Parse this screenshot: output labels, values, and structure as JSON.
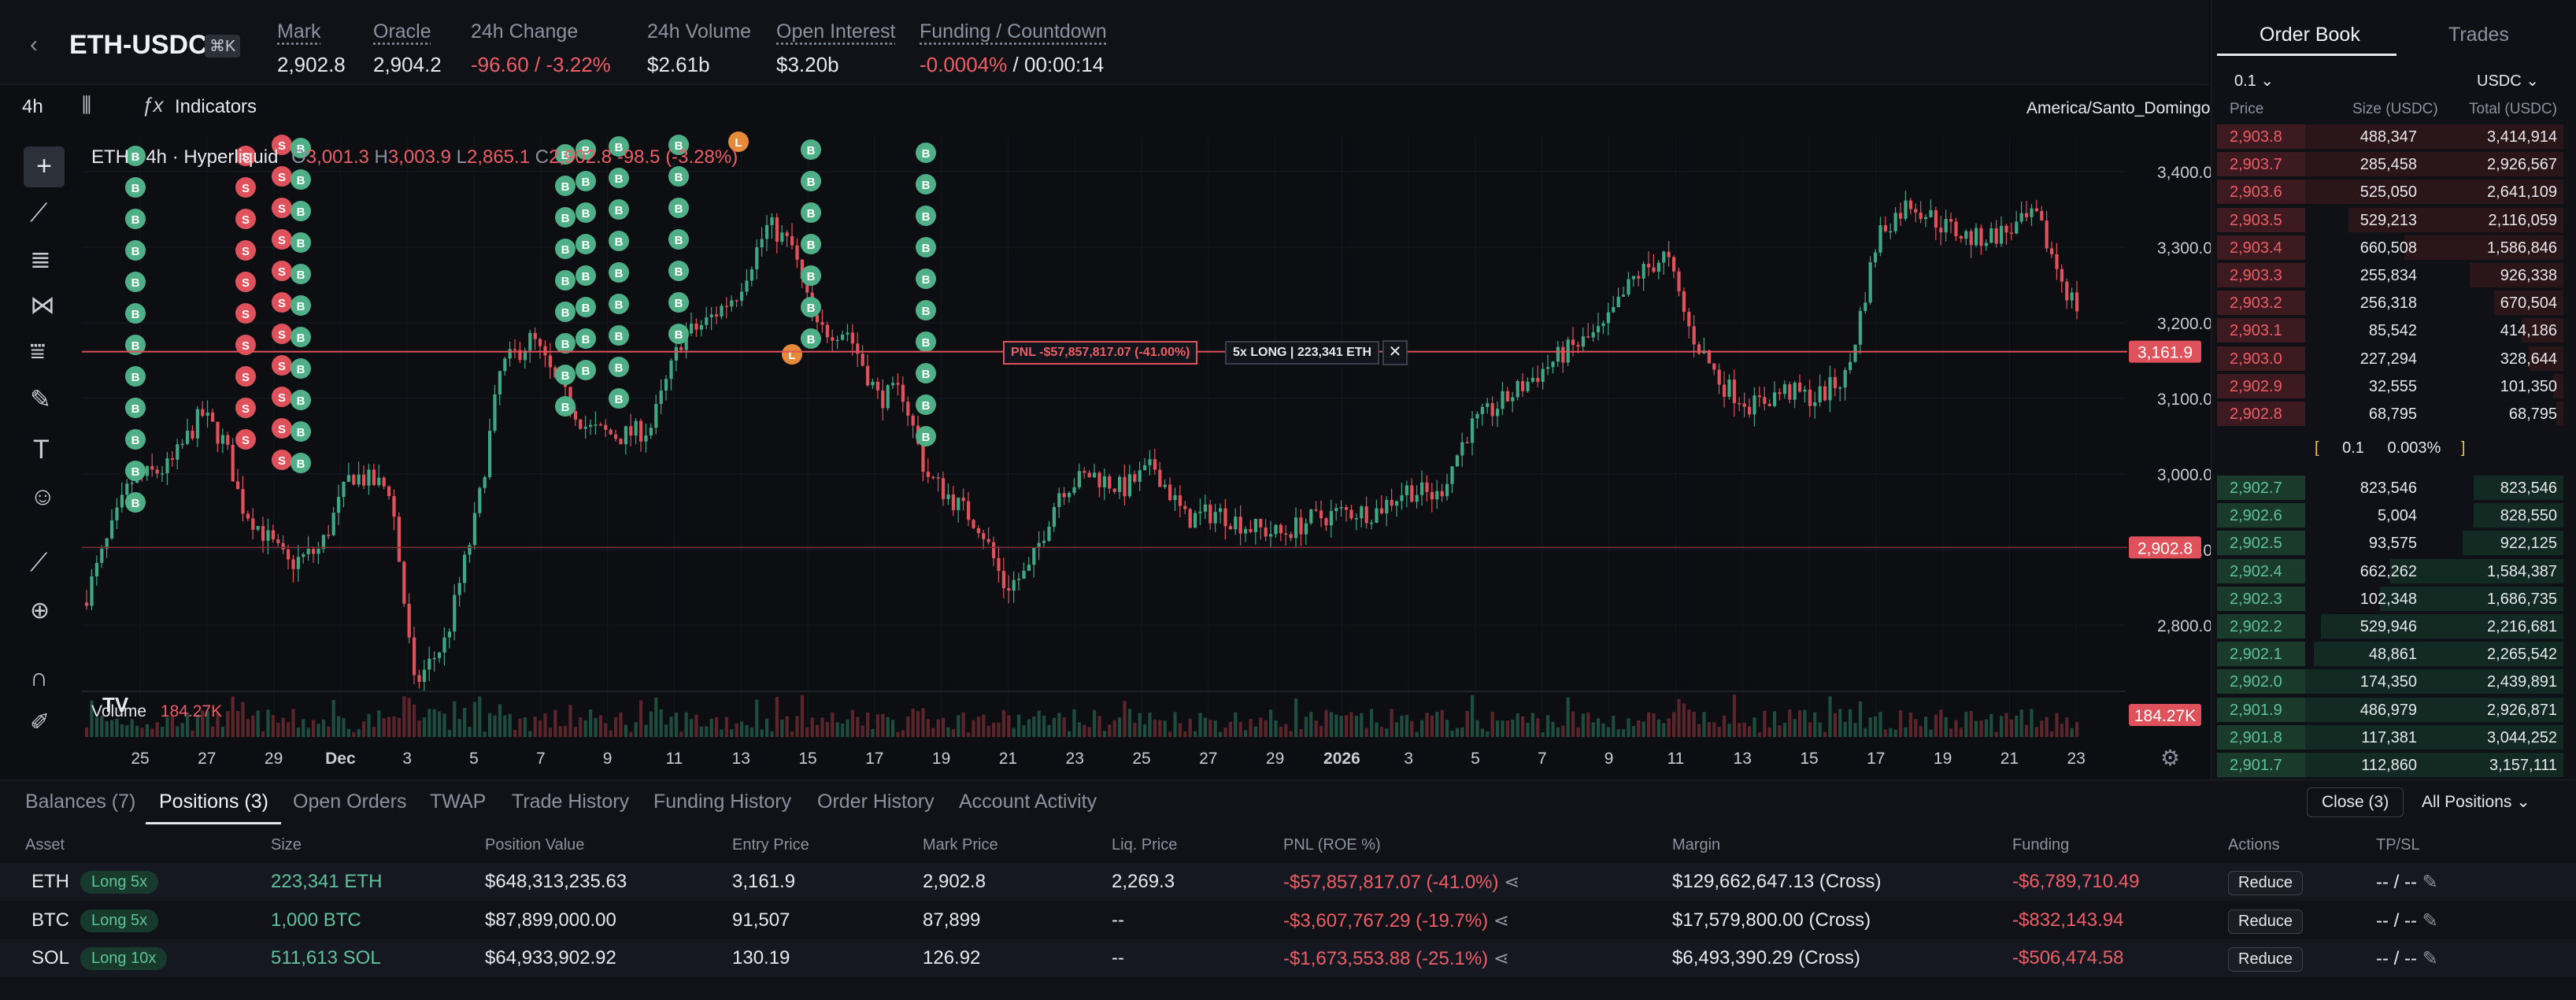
{
  "market": {
    "symbol": "ETH-USDC",
    "shortcut": "⌘K"
  },
  "stats": {
    "mark_label": "Mark",
    "mark_value": "2,902.8",
    "oracle_label": "Oracle",
    "oracle_value": "2,904.2",
    "change_label": "24h Change",
    "change_value": "-96.60 / -3.22%",
    "volume_label": "24h Volume",
    "volume_value": "$2.61b",
    "oi_label": "Open Interest",
    "oi_value": "$3.20b",
    "funding_label": "Funding / Countdown",
    "funding_rate": "-0.0004%",
    "funding_countdown": " / 00:00:14"
  },
  "chart_toolbar": {
    "interval": "4h",
    "indicators": "Indicators",
    "timezone": "America/Santo_Domingo"
  },
  "legend": {
    "title": "ETH · 4h · Hyperliquid",
    "o": "3,001.3",
    "h": "3,003.9",
    "l": "2,865.1",
    "c": "2,902.8",
    "chg": "-98.5",
    "chg_pct": "(-3.28%)"
  },
  "volume_legend": {
    "label": "Volume",
    "value": "184.27K"
  },
  "price_axis": [
    "3,400.0",
    "3,300.0",
    "3,200.0",
    "3,100.0",
    "3,000.0",
    "2,900.0",
    "2,800.0"
  ],
  "price_tags": {
    "entry": "3,161.9",
    "mark": "2,902.8",
    "volume": "184.27K"
  },
  "date_axis": [
    "25",
    "27",
    "29",
    "Dec",
    "3",
    "5",
    "7",
    "9",
    "11",
    "13",
    "15",
    "17",
    "19",
    "21",
    "23",
    "25",
    "27",
    "29",
    "2026",
    "3",
    "5",
    "7",
    "9",
    "11",
    "13",
    "15",
    "17",
    "19",
    "21",
    "23"
  ],
  "position_line": {
    "pnl": "PNL -$57,857,817.07 (-41.00%)",
    "size": "5x LONG | 223,341 ETH"
  },
  "colors": {
    "up": "#3fa784",
    "down": "#e0525b",
    "bg": "#0c0e12",
    "panel": "#12151b",
    "accent_bg": "#2c3139"
  },
  "order_book": {
    "tabs": [
      "Order Book",
      "Trades"
    ],
    "tick": "0.1",
    "currency": "USDC",
    "headers": [
      "Price",
      "Size (USDC)",
      "Total (USDC)"
    ],
    "asks": [
      {
        "price": "2,903.8",
        "size": "488,347",
        "total": "3,414,914",
        "depth": 1.0
      },
      {
        "price": "2,903.7",
        "size": "285,458",
        "total": "2,926,567",
        "depth": 0.86
      },
      {
        "price": "2,903.6",
        "size": "525,050",
        "total": "2,641,109",
        "depth": 0.77
      },
      {
        "price": "2,903.5",
        "size": "529,213",
        "total": "2,116,059",
        "depth": 0.62
      },
      {
        "price": "2,903.4",
        "size": "660,508",
        "total": "1,586,846",
        "depth": 0.46
      },
      {
        "price": "2,903.3",
        "size": "255,834",
        "total": "926,338",
        "depth": 0.27
      },
      {
        "price": "2,903.2",
        "size": "256,318",
        "total": "670,504",
        "depth": 0.2
      },
      {
        "price": "2,903.1",
        "size": "85,542",
        "total": "414,186",
        "depth": 0.12
      },
      {
        "price": "2,903.0",
        "size": "227,294",
        "total": "328,644",
        "depth": 0.1
      },
      {
        "price": "2,902.9",
        "size": "32,555",
        "total": "101,350",
        "depth": 0.03
      },
      {
        "price": "2,902.8",
        "size": "68,795",
        "total": "68,795",
        "depth": 0.02
      }
    ],
    "spread": {
      "value": "0.1",
      "pct": "0.003%"
    },
    "bids": [
      {
        "price": "2,902.7",
        "size": "823,546",
        "total": "823,546",
        "depth": 0.26
      },
      {
        "price": "2,902.6",
        "size": "5,004",
        "total": "828,550",
        "depth": 0.26
      },
      {
        "price": "2,902.5",
        "size": "93,575",
        "total": "922,125",
        "depth": 0.29
      },
      {
        "price": "2,902.4",
        "size": "662,262",
        "total": "1,584,387",
        "depth": 0.5
      },
      {
        "price": "2,902.3",
        "size": "102,348",
        "total": "1,686,735",
        "depth": 0.53
      },
      {
        "price": "2,902.2",
        "size": "529,946",
        "total": "2,216,681",
        "depth": 0.7
      },
      {
        "price": "2,902.1",
        "size": "48,861",
        "total": "2,265,542",
        "depth": 0.72
      },
      {
        "price": "2,902.0",
        "size": "174,350",
        "total": "2,439,891",
        "depth": 0.77
      },
      {
        "price": "2,901.9",
        "size": "486,979",
        "total": "2,926,871",
        "depth": 0.93
      },
      {
        "price": "2,901.8",
        "size": "117,381",
        "total": "3,044,252",
        "depth": 0.96
      },
      {
        "price": "2,901.7",
        "size": "112,860",
        "total": "3,157,111",
        "depth": 1.0
      }
    ]
  },
  "bottom_tabs": [
    "Balances (7)",
    "Positions (3)",
    "Open Orders",
    "TWAP",
    "Trade History",
    "Funding History",
    "Order History",
    "Account Activity"
  ],
  "bottom_actions": {
    "close": "Close (3)",
    "filter": "All Positions"
  },
  "positions_headers": [
    "Asset",
    "Size",
    "Position Value",
    "Entry Price",
    "Mark Price",
    "Liq. Price",
    "PNL (ROE %)",
    "Margin",
    "Funding",
    "Actions",
    "TP/SL"
  ],
  "positions": [
    {
      "asset": "ETH",
      "lev": "Long 5x",
      "size": "223,341 ETH",
      "value": "$648,313,235.63",
      "entry": "3,161.9",
      "mark": "2,902.8",
      "liq": "2,269.3",
      "pnl": "-$57,857,817.07 (-41.0%)",
      "margin": "$129,662,647.13 (Cross)",
      "funding": "-$6,789,710.49",
      "action": "Reduce",
      "tpsl": "-- / --"
    },
    {
      "asset": "BTC",
      "lev": "Long 5x",
      "size": "1,000 BTC",
      "value": "$87,899,000.00",
      "entry": "91,507",
      "mark": "87,899",
      "liq": "--",
      "pnl": "-$3,607,767.29 (-19.7%)",
      "margin": "$17,579,800.00 (Cross)",
      "funding": "-$832,143.94",
      "action": "Reduce",
      "tpsl": "-- / --"
    },
    {
      "asset": "SOL",
      "lev": "Long 10x",
      "size": "511,613 SOL",
      "value": "$64,933,902.92",
      "entry": "130.19",
      "mark": "126.92",
      "liq": "--",
      "pnl": "-$1,673,553.88 (-25.1%)",
      "margin": "$6,493,390.29 (Cross)",
      "funding": "-$506,474.58",
      "action": "Reduce",
      "tpsl": "-- / --"
    }
  ]
}
